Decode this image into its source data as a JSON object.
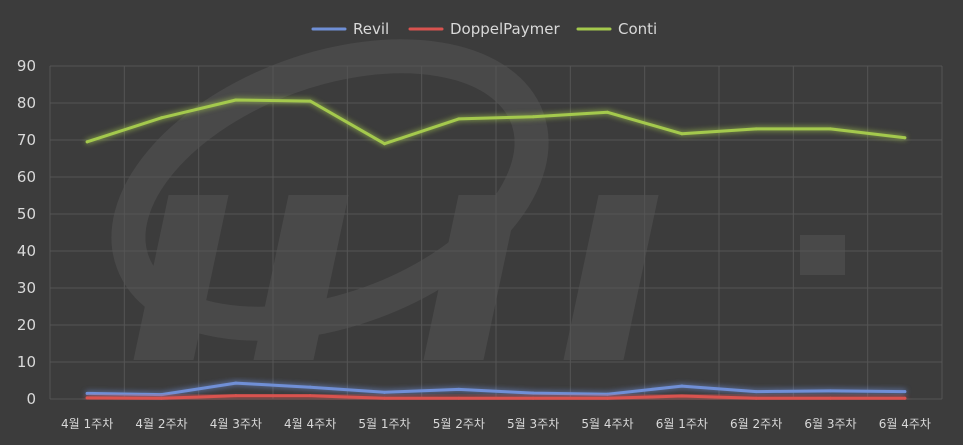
{
  "chart_data": {
    "type": "line",
    "title": "",
    "xlabel": "",
    "ylabel": "",
    "categories": [
      "4월 1주차",
      "4월 2주차",
      "4월 3주차",
      "4월 4주차",
      "5월 1주차",
      "5월 2주차",
      "5월 3주차",
      "5월 4주차",
      "6월 1주차",
      "6월 2주차",
      "6월 3주차",
      "6월 4주차"
    ],
    "yticks": [
      "0",
      "10",
      "20",
      "30",
      "40",
      "50",
      "60",
      "70",
      "80",
      "90"
    ],
    "ylim": [
      0,
      90
    ],
    "grid": true,
    "legend_position": "top-center",
    "series": [
      {
        "name": "Revil",
        "color": "#6f8fd6",
        "values": [
          1.5,
          1.2,
          4.3,
          3.2,
          1.8,
          2.6,
          1.6,
          1.3,
          3.5,
          2.0,
          2.2,
          2.0
        ]
      },
      {
        "name": "DoppelPaymer",
        "color": "#d9534f",
        "values": [
          0.3,
          0.2,
          0.9,
          0.9,
          0.2,
          0.2,
          0.2,
          0.2,
          0.8,
          0.2,
          0.2,
          0.2
        ]
      },
      {
        "name": "Conti",
        "color": "#a4c94d",
        "values": [
          69.5,
          76.0,
          80.8,
          80.5,
          69.0,
          75.7,
          76.3,
          77.5,
          71.7,
          73.0,
          73.0,
          70.6
        ]
      }
    ]
  }
}
